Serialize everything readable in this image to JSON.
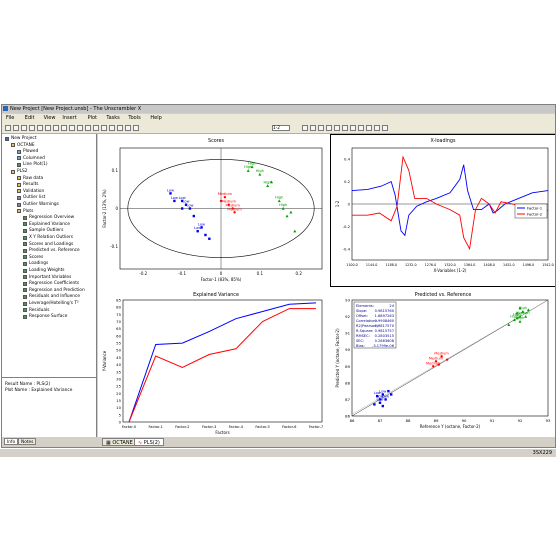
{
  "window": {
    "title": "New Project [New Project.unsb] - The Unscrambler X"
  },
  "menu": [
    "File",
    "Edit",
    "View",
    "Insert",
    "Plot",
    "Tasks",
    "Tools",
    "Help"
  ],
  "toolbar": {
    "combo_label": "1-2"
  },
  "tree": [
    {
      "label": "New Project",
      "level": 0,
      "icon": "project-icon"
    },
    {
      "label": "OCTANE",
      "level": 1,
      "icon": "folder-icon"
    },
    {
      "label": "Plowed",
      "level": 2,
      "icon": "table-icon"
    },
    {
      "label": "Columned",
      "level": 2,
      "icon": "table-icon"
    },
    {
      "label": "Line Plot(1)",
      "level": 2,
      "icon": "plot-icon"
    },
    {
      "label": "PLS2",
      "level": 1,
      "icon": "folder-icon"
    },
    {
      "label": "Raw data",
      "level": 2,
      "icon": "folder-icon"
    },
    {
      "label": "Results",
      "level": 2,
      "icon": "folder-icon"
    },
    {
      "label": "Validation",
      "level": 2,
      "icon": "folder-icon"
    },
    {
      "label": "Outlier list",
      "level": 2,
      "icon": "list-icon"
    },
    {
      "label": "Outlier Warnings",
      "level": 2,
      "icon": "list-icon"
    },
    {
      "label": "Plots",
      "level": 2,
      "icon": "folder-icon"
    },
    {
      "label": "Regression Overview",
      "level": 3,
      "icon": "plot-icon"
    },
    {
      "label": "Explained Variance",
      "level": 3,
      "icon": "plot-icon"
    },
    {
      "label": "Sample Outliers",
      "level": 3,
      "icon": "plot-icon"
    },
    {
      "label": "X Y Relation Outliers",
      "level": 3,
      "icon": "plot-icon"
    },
    {
      "label": "Scores and Loadings",
      "level": 3,
      "icon": "plot-icon"
    },
    {
      "label": "Predicted vs. Reference",
      "level": 3,
      "icon": "plot-icon"
    },
    {
      "label": "Scores",
      "level": 3,
      "icon": "plot-icon"
    },
    {
      "label": "Loadings",
      "level": 3,
      "icon": "plot-icon"
    },
    {
      "label": "Loading Weights",
      "level": 3,
      "icon": "plot-icon"
    },
    {
      "label": "Important Variables",
      "level": 3,
      "icon": "plot-icon"
    },
    {
      "label": "Regression Coefficients",
      "level": 3,
      "icon": "plot-icon"
    },
    {
      "label": "Regression and Prediction",
      "level": 3,
      "icon": "plot-icon"
    },
    {
      "label": "Residuals and Influence",
      "level": 3,
      "icon": "plot-icon"
    },
    {
      "label": "Leverage/Hotelling's T²",
      "level": 3,
      "icon": "plot-icon"
    },
    {
      "label": "Residuals",
      "level": 3,
      "icon": "plot-icon"
    },
    {
      "label": "Response Surface",
      "level": 3,
      "icon": "plot-icon"
    }
  ],
  "properties": {
    "result_name": "Result Name : PLS(2)",
    "plot_name": "Plot Name : Explained Variance"
  },
  "sidebar_tabs": [
    "Info",
    "Notes"
  ],
  "bottom_tabs": [
    "OCTANE",
    "PLS(2)"
  ],
  "footer_code": "3SX229",
  "colors": {
    "blue": "#0000ff",
    "red": "#ff0000",
    "green": "#00a000",
    "high_label": "#009900",
    "medium_label": "#ff0000",
    "low_label": "#0000cc"
  },
  "panels": {
    "scores": {
      "title": "Scores",
      "xlabel": "Factor-1 (83%, 85%)",
      "ylabel": "Factor-2 (13%, 2%)",
      "xticks": [
        "-0.2",
        "-0.1",
        "0",
        "0.1",
        "0.2"
      ],
      "yticks": [
        "0.1",
        "0",
        "-0.1"
      ],
      "low": [
        [
          -0.13,
          0.04
        ],
        [
          -0.12,
          0.02
        ],
        [
          -0.1,
          0.02
        ],
        [
          -0.09,
          0.01
        ],
        [
          -0.08,
          0.0
        ],
        [
          -0.06,
          -0.06
        ],
        [
          -0.05,
          -0.05
        ],
        [
          -0.04,
          -0.07
        ],
        [
          -0.03,
          -0.08
        ],
        [
          -0.1,
          0.0
        ],
        [
          -0.07,
          -0.02
        ]
      ],
      "low_labels": [
        "Low",
        "Low",
        "Low",
        "Low",
        "Low",
        "Low",
        "Low"
      ],
      "medium": [
        [
          0.01,
          0.03
        ],
        [
          0.02,
          0.01
        ],
        [
          0.03,
          0.0
        ],
        [
          0.035,
          -0.01
        ],
        [
          0.0,
          0.02
        ]
      ],
      "medium_labels": [
        "Medium",
        "Medium",
        "Medium",
        "Medium"
      ],
      "high": [
        [
          0.07,
          0.1
        ],
        [
          0.08,
          0.11
        ],
        [
          0.1,
          0.09
        ],
        [
          0.12,
          0.06
        ],
        [
          0.15,
          0.02
        ],
        [
          0.16,
          0.0
        ],
        [
          0.17,
          -0.02
        ],
        [
          0.18,
          -0.01
        ],
        [
          0.19,
          -0.06
        ],
        [
          0.13,
          0.07
        ]
      ],
      "high_labels": [
        "High",
        "High",
        "High",
        "High",
        "High",
        "High"
      ]
    },
    "xloadings": {
      "title": "X-loadings",
      "xlabel": "X-Variables (1-2)",
      "ylabel": "1-2",
      "xticks": [
        "1100.0",
        "1144.0",
        "1188.0",
        "1232.0",
        "1276.0",
        "1320.0",
        "1364.0",
        "1408.0",
        "1452.0",
        "1496.0",
        "1542.0"
      ],
      "yticks": [
        "0.4",
        "0.2",
        "0",
        "-0.2",
        "-0.4"
      ],
      "legend": [
        "Factor-1",
        "Factor-2"
      ]
    },
    "explained": {
      "title": "Explained Variance",
      "xlabel": "Factors",
      "ylabel": "Y-Variance",
      "categories": [
        "Factor-0",
        "Factor-1",
        "Factor-2",
        "Factor-3",
        "Factor-4",
        "Factor-5",
        "Factor-6",
        "Factor-7"
      ],
      "yticks": [
        "85",
        "80",
        "75",
        "70",
        "65",
        "60",
        "55",
        "50",
        "45",
        "40",
        "35",
        "30",
        "25",
        "20",
        "15",
        "10",
        "5",
        "0"
      ],
      "ylim": [
        0,
        85
      ],
      "series": [
        {
          "color": "blue",
          "values": [
            0,
            54,
            55,
            63,
            72,
            77,
            82,
            83
          ]
        },
        {
          "color": "red",
          "values": [
            0,
            46,
            38,
            47,
            51,
            70,
            79,
            79
          ]
        }
      ]
    },
    "predicted": {
      "title": "Predicted vs. Reference",
      "xlabel": "Reference Y (octane, Factor-2)",
      "ylabel": "Predicted Y (octane, Factor-2)",
      "xticks": [
        "86",
        "87",
        "88",
        "89",
        "90",
        "91",
        "92",
        "93"
      ],
      "yticks": [
        "93",
        "92",
        "91",
        "90",
        "89",
        "88",
        "87",
        "86"
      ],
      "stats": [
        [
          "Elements:",
          "24"
        ],
        [
          "Slope:",
          "0.9815760"
        ],
        [
          "Offset:",
          "1.6897263"
        ],
        [
          "Correlation:",
          "0.9908460"
        ],
        [
          "R2(Pearson):",
          "0.9817570"
        ],
        [
          "R-Square:",
          "0.9815757"
        ],
        [
          "RMSEC:",
          "0.2803515"
        ],
        [
          "SEC:",
          "0.2863608"
        ],
        [
          "Bias:",
          "-3.1799e-06"
        ]
      ],
      "low": [
        [
          86.9,
          87.2
        ],
        [
          87.0,
          87.0
        ],
        [
          87.1,
          87.3
        ],
        [
          87.0,
          86.8
        ],
        [
          87.2,
          87.0
        ],
        [
          87.3,
          87.5
        ],
        [
          87.4,
          87.3
        ],
        [
          86.8,
          86.7
        ],
        [
          87.1,
          86.6
        ]
      ],
      "low_labels": [
        "Low",
        "Low",
        "Low",
        "Low",
        "Low"
      ],
      "medium": [
        [
          88.9,
          89.0
        ],
        [
          89.0,
          89.3
        ],
        [
          89.2,
          89.6
        ],
        [
          89.4,
          89.4
        ],
        [
          89.1,
          89.1
        ]
      ],
      "medium_labels": [
        "Medium",
        "Medium",
        "Medium"
      ],
      "high": [
        [
          91.8,
          91.8
        ],
        [
          91.9,
          91.9
        ],
        [
          92.0,
          92.0
        ],
        [
          92.0,
          91.7
        ],
        [
          92.1,
          92.3
        ],
        [
          92.2,
          92.0
        ],
        [
          92.0,
          92.5
        ],
        [
          91.6,
          91.5
        ],
        [
          92.3,
          92.4
        ],
        [
          91.9,
          92.2
        ]
      ],
      "high_labels": [
        "High",
        "High",
        "High",
        "High",
        "High",
        "High"
      ]
    }
  }
}
